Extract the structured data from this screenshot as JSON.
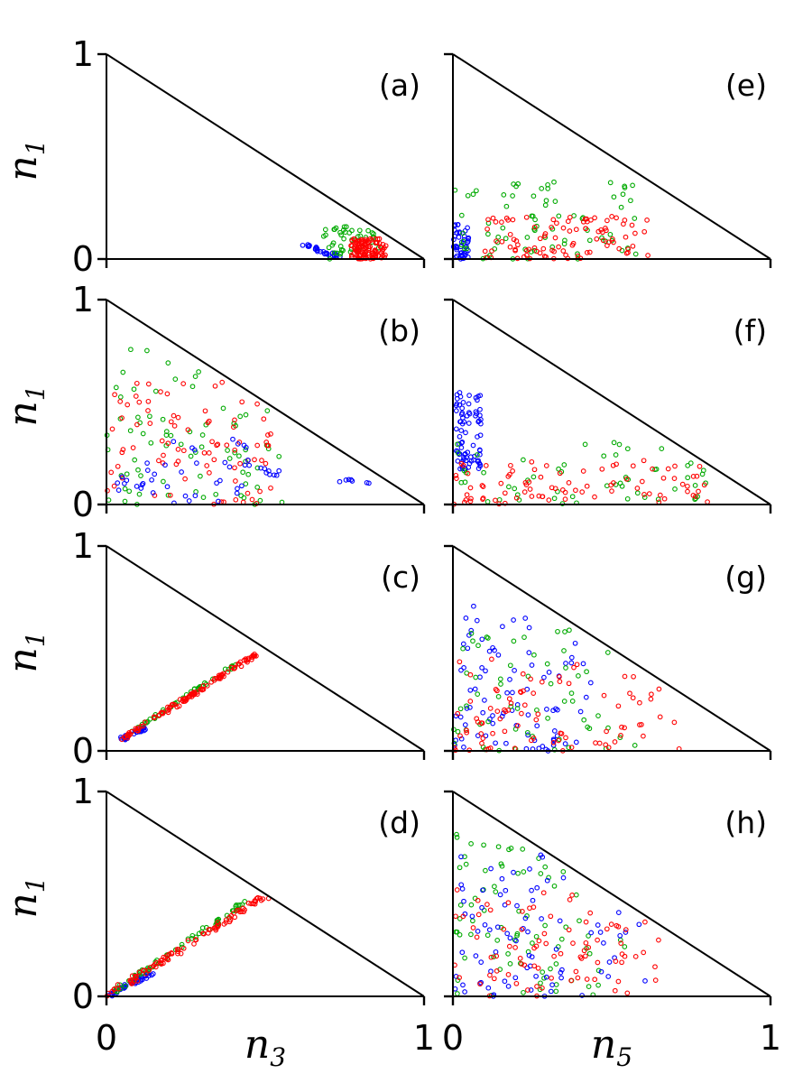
{
  "chart_data": {
    "type": "scatter",
    "figure": "grid of 4x2 ternary-style scatter panels",
    "axis_range": [
      0,
      1
    ],
    "x_tick_labels": [
      "0",
      "1"
    ],
    "y_tick_labels": [
      "0",
      "1"
    ],
    "y_axis_label": {
      "base": "n",
      "sub": "1"
    },
    "x_axis_labels": [
      {
        "base": "n",
        "sub": "3"
      },
      {
        "base": "n",
        "sub": "5"
      }
    ],
    "series_colors": {
      "blue": "#0000ff",
      "green": "#00aa00",
      "red": "#ff0000"
    },
    "panels": [
      {
        "label": "(a)",
        "column": 0,
        "row": 0,
        "clusters": [
          {
            "series": "blue",
            "shape": "line",
            "p0": [
              0.62,
              0.07
            ],
            "p1": [
              0.73,
              0.01
            ],
            "n": 30,
            "spread": 0.01
          },
          {
            "series": "green",
            "shape": "box",
            "x": [
              0.68,
              0.86
            ],
            "y": [
              0.0,
              0.16
            ],
            "n": 45
          },
          {
            "series": "red",
            "shape": "box",
            "x": [
              0.77,
              0.88
            ],
            "y": [
              0.0,
              0.1
            ],
            "n": 110
          }
        ]
      },
      {
        "label": "(b)",
        "column": 0,
        "row": 1,
        "clusters": [
          {
            "series": "green",
            "shape": "tri",
            "x": [
              0.0,
              0.58
            ],
            "y": [
              0.0,
              0.8
            ],
            "n": 75
          },
          {
            "series": "red",
            "shape": "tri",
            "x": [
              0.0,
              0.52
            ],
            "y": [
              0.0,
              0.6
            ],
            "n": 85
          },
          {
            "series": "blue",
            "shape": "tri",
            "x": [
              0.0,
              0.45
            ],
            "y": [
              0.0,
              0.35
            ],
            "n": 40
          },
          {
            "series": "blue",
            "shape": "line",
            "p0": [
              0.49,
              0.17
            ],
            "p1": [
              0.56,
              0.15
            ],
            "n": 8,
            "spread": 0.02
          },
          {
            "series": "blue",
            "shape": "line",
            "p0": [
              0.74,
              0.12
            ],
            "p1": [
              0.84,
              0.1
            ],
            "n": 7,
            "spread": 0.01
          }
        ]
      },
      {
        "label": "(c)",
        "column": 0,
        "row": 2,
        "clusters": [
          {
            "series": "blue",
            "shape": "line",
            "p0": [
              0.05,
              0.06
            ],
            "p1": [
              0.12,
              0.11
            ],
            "n": 35,
            "spread": 0.008
          },
          {
            "series": "green",
            "shape": "line",
            "p0": [
              0.06,
              0.07
            ],
            "p1": [
              0.42,
              0.44
            ],
            "n": 40,
            "spread": 0.008
          },
          {
            "series": "red",
            "shape": "line",
            "p0": [
              0.05,
              0.06
            ],
            "p1": [
              0.47,
              0.47
            ],
            "n": 110,
            "spread": 0.008
          }
        ]
      },
      {
        "label": "(d)",
        "column": 0,
        "row": 3,
        "clusters": [
          {
            "series": "blue",
            "shape": "line",
            "p0": [
              0.01,
              0.01
            ],
            "p1": [
              0.14,
              0.11
            ],
            "n": 40,
            "spread": 0.01
          },
          {
            "series": "green",
            "shape": "line",
            "p0": [
              0.02,
              0.02
            ],
            "p1": [
              0.45,
              0.47
            ],
            "n": 60,
            "spread": 0.012
          },
          {
            "series": "red",
            "shape": "line",
            "p0": [
              0.01,
              0.01
            ],
            "p1": [
              0.5,
              0.49
            ],
            "n": 95,
            "spread": 0.012
          }
        ]
      },
      {
        "label": "(e)",
        "column": 1,
        "row": 0,
        "clusters": [
          {
            "series": "blue",
            "shape": "box",
            "x": [
              0.0,
              0.05
            ],
            "y": [
              0.0,
              0.17
            ],
            "n": 45
          },
          {
            "series": "green",
            "shape": "tri",
            "x": [
              0.0,
              0.58
            ],
            "y": [
              0.0,
              0.4
            ],
            "n": 75
          },
          {
            "series": "red",
            "shape": "tri",
            "x": [
              0.1,
              0.62
            ],
            "y": [
              0.0,
              0.21
            ],
            "n": 95
          }
        ]
      },
      {
        "label": "(f)",
        "column": 1,
        "row": 1,
        "clusters": [
          {
            "series": "blue",
            "shape": "box",
            "x": [
              0.01,
              0.09
            ],
            "y": [
              0.17,
              0.55
            ],
            "n": 80
          },
          {
            "series": "green",
            "shape": "tri",
            "x": [
              0.0,
              0.8
            ],
            "y": [
              0.0,
              0.33
            ],
            "n": 55
          },
          {
            "series": "red",
            "shape": "tri",
            "x": [
              0.0,
              0.82
            ],
            "y": [
              0.0,
              0.22
            ],
            "n": 85
          }
        ]
      },
      {
        "label": "(g)",
        "column": 1,
        "row": 2,
        "clusters": [
          {
            "series": "blue",
            "shape": "tri",
            "x": [
              0.0,
              0.45
            ],
            "y": [
              0.0,
              0.72
            ],
            "n": 85
          },
          {
            "series": "green",
            "shape": "tri",
            "x": [
              0.0,
              0.58
            ],
            "y": [
              0.0,
              0.63
            ],
            "n": 60
          },
          {
            "series": "red",
            "shape": "tri",
            "x": [
              0.0,
              0.73
            ],
            "y": [
              0.0,
              0.45
            ],
            "n": 85
          }
        ]
      },
      {
        "label": "(h)",
        "column": 1,
        "row": 3,
        "clusters": [
          {
            "series": "green",
            "shape": "tri",
            "x": [
              0.0,
              0.55
            ],
            "y": [
              0.0,
              0.82
            ],
            "n": 80
          },
          {
            "series": "blue",
            "shape": "tri",
            "x": [
              0.0,
              0.62
            ],
            "y": [
              0.0,
              0.7
            ],
            "n": 80
          },
          {
            "series": "red",
            "shape": "tri",
            "x": [
              0.0,
              0.68
            ],
            "y": [
              0.0,
              0.55
            ],
            "n": 85
          }
        ]
      }
    ]
  }
}
